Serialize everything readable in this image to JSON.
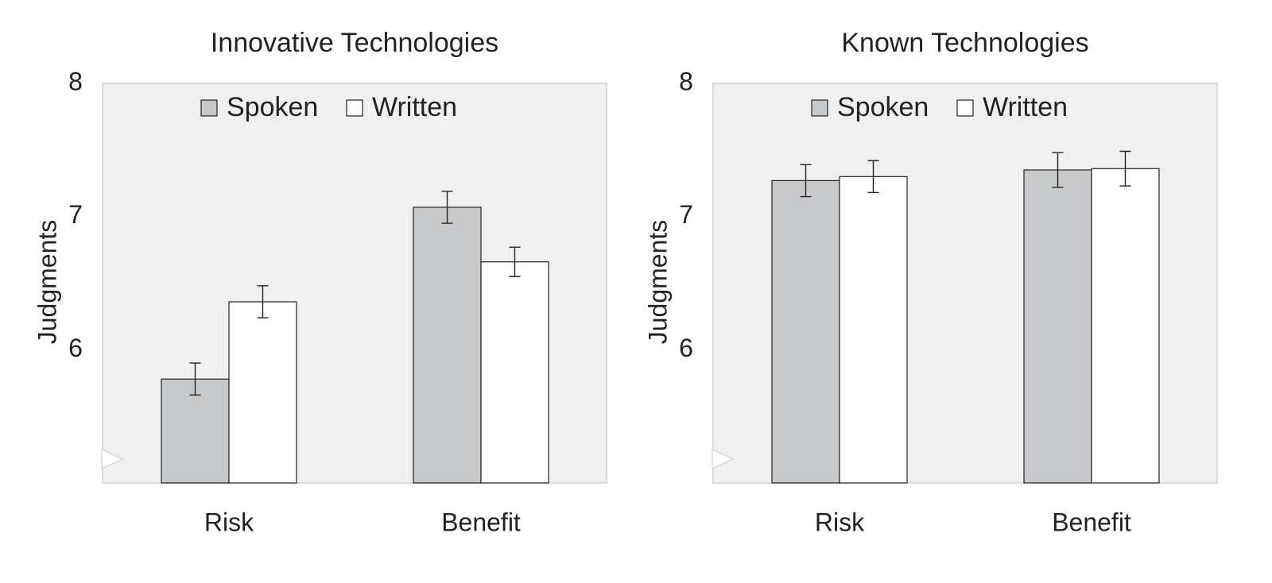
{
  "chart_data": [
    {
      "type": "bar",
      "title": "Innovative Technologies",
      "y_label": "Judgments",
      "categories": [
        "Risk",
        "Benefit"
      ],
      "series": [
        {
          "name": "Spoken",
          "color": "#c8c9cb",
          "values": [
            5.78,
            7.07
          ],
          "errors": [
            0.12,
            0.12
          ]
        },
        {
          "name": "Written",
          "color": "#ffffff",
          "values": [
            6.36,
            6.66
          ],
          "errors": [
            0.12,
            0.11
          ]
        }
      ],
      "ylim": [
        5,
        8
      ],
      "yticks": [
        6,
        7,
        8
      ],
      "axis_break": true,
      "legend": "top"
    },
    {
      "type": "bar",
      "title": "Known Technologies",
      "y_label": "Judgments",
      "categories": [
        "Risk",
        "Benefit"
      ],
      "series": [
        {
          "name": "Spoken",
          "color": "#c8c9cb",
          "values": [
            7.27,
            7.35
          ],
          "errors": [
            0.12,
            0.13
          ]
        },
        {
          "name": "Written",
          "color": "#ffffff",
          "values": [
            7.3,
            7.36
          ],
          "errors": [
            0.12,
            0.13
          ]
        }
      ],
      "ylim": [
        5,
        8
      ],
      "yticks": [
        6,
        7,
        8
      ],
      "axis_break": true,
      "legend": "top"
    }
  ]
}
